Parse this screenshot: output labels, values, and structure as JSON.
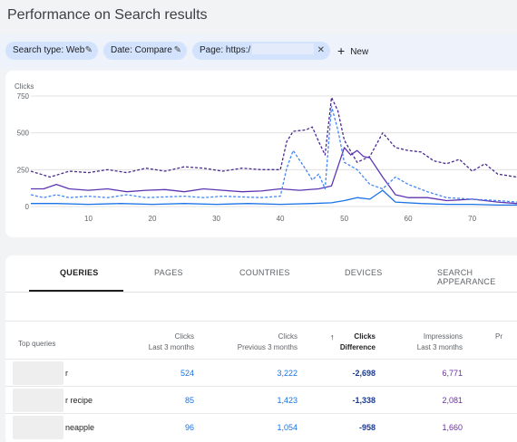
{
  "page_title": "Performance on Search results",
  "filters": {
    "search_type": "Search type: Web",
    "date": "Date: Compare",
    "page": "Page: https:/",
    "new_label": "New"
  },
  "colors": {
    "clicks_current": "#1a73e8",
    "clicks_previous": "#4285f4",
    "impressions_current": "#5e35b1",
    "impressions_previous": "#4a2a8c"
  },
  "chart_data": {
    "type": "line",
    "ylabel": "Clicks",
    "ylim": [
      0,
      750
    ],
    "yticks": [
      "750",
      "500",
      "250",
      "0"
    ],
    "ytick_values": [
      750,
      500,
      250,
      0
    ],
    "xlim": [
      1,
      77
    ],
    "xticks": [
      "10",
      "20",
      "30",
      "40",
      "50",
      "60",
      "70"
    ],
    "xtick_values": [
      10,
      20,
      30,
      40,
      50,
      60,
      70
    ],
    "series": [
      {
        "key": "impressions_previous",
        "dashed": true,
        "x": [
          1,
          4,
          7,
          10,
          13,
          16,
          19,
          22,
          25,
          28,
          31,
          34,
          37,
          40,
          41,
          42,
          44,
          45,
          46,
          47,
          48,
          49,
          50,
          52,
          54,
          56,
          58,
          60,
          62,
          64,
          66,
          68,
          70,
          72,
          74,
          77
        ],
        "y": [
          240,
          200,
          240,
          230,
          250,
          230,
          260,
          240,
          270,
          260,
          240,
          260,
          250,
          250,
          440,
          510,
          520,
          540,
          440,
          350,
          740,
          650,
          450,
          300,
          340,
          500,
          400,
          380,
          370,
          310,
          290,
          320,
          240,
          290,
          220,
          200
        ]
      },
      {
        "key": "impressions_current",
        "dashed": false,
        "x": [
          1,
          3,
          5,
          7,
          10,
          13,
          16,
          19,
          22,
          25,
          28,
          31,
          34,
          37,
          40,
          43,
          46,
          48,
          50,
          51,
          52,
          53,
          54,
          56,
          58,
          60,
          63,
          66,
          70,
          74,
          77
        ],
        "y": [
          120,
          120,
          150,
          120,
          110,
          120,
          100,
          110,
          115,
          100,
          120,
          110,
          100,
          105,
          120,
          110,
          120,
          140,
          400,
          350,
          380,
          340,
          330,
          200,
          80,
          60,
          60,
          40,
          50,
          30,
          20
        ]
      },
      {
        "key": "clicks_previous",
        "dashed": true,
        "x": [
          1,
          3,
          5,
          7,
          10,
          13,
          16,
          19,
          22,
          25,
          28,
          31,
          34,
          37,
          40,
          41,
          42,
          44,
          45,
          46,
          47,
          48,
          49,
          50,
          52,
          54,
          56,
          58,
          60,
          63,
          66,
          70,
          74,
          77
        ],
        "y": [
          80,
          60,
          80,
          60,
          70,
          60,
          80,
          60,
          65,
          70,
          60,
          70,
          65,
          60,
          70,
          260,
          380,
          250,
          180,
          220,
          120,
          680,
          520,
          300,
          250,
          150,
          120,
          200,
          150,
          100,
          60,
          50,
          40,
          30
        ]
      },
      {
        "key": "clicks_current",
        "dashed": false,
        "x": [
          1,
          5,
          10,
          15,
          20,
          25,
          30,
          35,
          40,
          45,
          48,
          50,
          52,
          54,
          56,
          58,
          62,
          66,
          70,
          74,
          77
        ],
        "y": [
          20,
          20,
          15,
          20,
          15,
          20,
          15,
          20,
          15,
          20,
          25,
          40,
          60,
          50,
          110,
          30,
          20,
          15,
          15,
          10,
          10
        ]
      }
    ]
  },
  "tabs": [
    {
      "label": "QUERIES",
      "active": true
    },
    {
      "label": "PAGES",
      "active": false
    },
    {
      "label": "COUNTRIES",
      "active": false
    },
    {
      "label": "DEVICES",
      "active": false
    },
    {
      "label": "SEARCH APPEARANCE",
      "active": false
    }
  ],
  "table": {
    "first_column": "Top queries",
    "columns": [
      {
        "line1": "Clicks",
        "line2": "Last 3 months"
      },
      {
        "line1": "Clicks",
        "line2": "Previous 3 months"
      },
      {
        "line1": "Clicks",
        "line2": "Difference",
        "sorted": true
      },
      {
        "line1": "Impressions",
        "line2": "Last 3 months"
      },
      {
        "line1": "",
        "line2": "Pr"
      }
    ],
    "rows": [
      {
        "query": "r",
        "clicks_last": "524",
        "clicks_prev": "3,222",
        "clicks_diff": "-2,698",
        "impr_last": "6,771"
      },
      {
        "query": "r recipe",
        "clicks_last": "85",
        "clicks_prev": "1,423",
        "clicks_diff": "-1,338",
        "impr_last": "2,081"
      },
      {
        "query": "neapple",
        "clicks_last": "96",
        "clicks_prev": "1,054",
        "clicks_diff": "-958",
        "impr_last": "1,660"
      }
    ]
  }
}
